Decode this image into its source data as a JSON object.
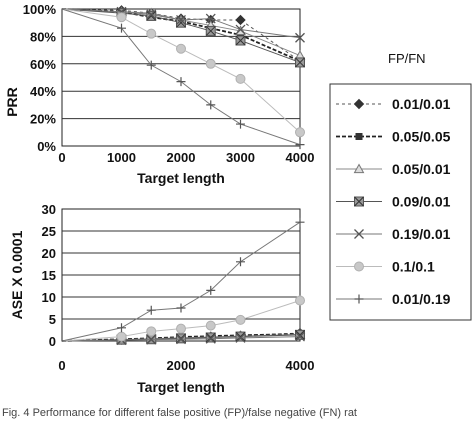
{
  "legend_title": "FP/FN",
  "caption": "Fig. 4   Performance for different false positive (FP)/false negative (FN) rat",
  "chart_data": [
    {
      "type": "line",
      "ylabel": "PRR",
      "xlabel": "Target length",
      "xlim": [
        0,
        4000
      ],
      "ylim": [
        0,
        100
      ],
      "xticks": [
        "0",
        "1000",
        "2000",
        "3000",
        "4000"
      ],
      "yticks": [
        "0%",
        "20%",
        "40%",
        "60%",
        "80%",
        "100%"
      ],
      "grid": "horizontal",
      "x": [
        0,
        1000,
        1500,
        2000,
        2500,
        3000,
        4000
      ],
      "series": [
        {
          "name": "0.01/0.01",
          "marker": "diamond",
          "dash": "3,3",
          "color": "#555555",
          "values": [
            100,
            99,
            97,
            93,
            92,
            92,
            62
          ]
        },
        {
          "name": "0.05/0.05",
          "marker": "square",
          "dash": "4,2",
          "color": "#222222",
          "values": [
            100,
            98,
            94,
            91,
            86,
            81,
            62
          ]
        },
        {
          "name": "0.05/0.01",
          "marker": "triangle",
          "dash": "",
          "color": "#888888",
          "values": [
            100,
            98,
            97,
            92,
            88,
            84,
            66
          ]
        },
        {
          "name": "0.09/0.01",
          "marker": "xsquare",
          "dash": "",
          "color": "#555555",
          "values": [
            100,
            97,
            95,
            90,
            84,
            77,
            61
          ]
        },
        {
          "name": "0.19/0.01",
          "marker": "star",
          "dash": "",
          "color": "#777777",
          "values": [
            100,
            98,
            96,
            92,
            93,
            85,
            79
          ]
        },
        {
          "name": "0.1/0.1",
          "marker": "circle",
          "dash": "",
          "color": "#bbbbbb",
          "values": [
            100,
            94,
            82,
            71,
            60,
            49,
            10
          ]
        },
        {
          "name": "0.01/0.19",
          "marker": "plus",
          "dash": "",
          "color": "#777777",
          "values": [
            100,
            86,
            59,
            47,
            30,
            16,
            1
          ]
        }
      ]
    },
    {
      "type": "line",
      "ylabel": "ASE  X 0.0001",
      "xlabel": "Target length",
      "xlim": [
        0,
        4000
      ],
      "ylim": [
        0,
        30
      ],
      "xticks": [
        "0",
        "2000",
        "4000"
      ],
      "yticks": [
        "0",
        "5",
        "10",
        "15",
        "20",
        "25",
        "30"
      ],
      "grid": "horizontal",
      "x": [
        0,
        1000,
        1500,
        2000,
        2500,
        3000,
        4000
      ],
      "series": [
        {
          "name": "0.01/0.01",
          "values": [
            0,
            0.3,
            0.5,
            0.8,
            1.0,
            1.2,
            1.8
          ]
        },
        {
          "name": "0.05/0.05",
          "values": [
            0,
            0.4,
            0.6,
            0.9,
            1.1,
            1.3,
            1.6
          ]
        },
        {
          "name": "0.05/0.01",
          "values": [
            0,
            0.3,
            0.5,
            0.7,
            0.9,
            1.1,
            1.5
          ]
        },
        {
          "name": "0.09/0.01",
          "values": [
            0,
            0.3,
            0.4,
            0.6,
            0.8,
            1.0,
            1.4
          ]
        },
        {
          "name": "0.19/0.01",
          "values": [
            0,
            0.2,
            0.3,
            0.4,
            0.5,
            0.7,
            1.0
          ]
        },
        {
          "name": "0.1/0.1",
          "values": [
            0,
            1.0,
            2.2,
            2.8,
            3.5,
            4.8,
            9.2
          ]
        },
        {
          "name": "0.01/0.19",
          "values": [
            0,
            3.0,
            7.0,
            7.5,
            11.5,
            18.0,
            27.0
          ]
        }
      ]
    }
  ]
}
